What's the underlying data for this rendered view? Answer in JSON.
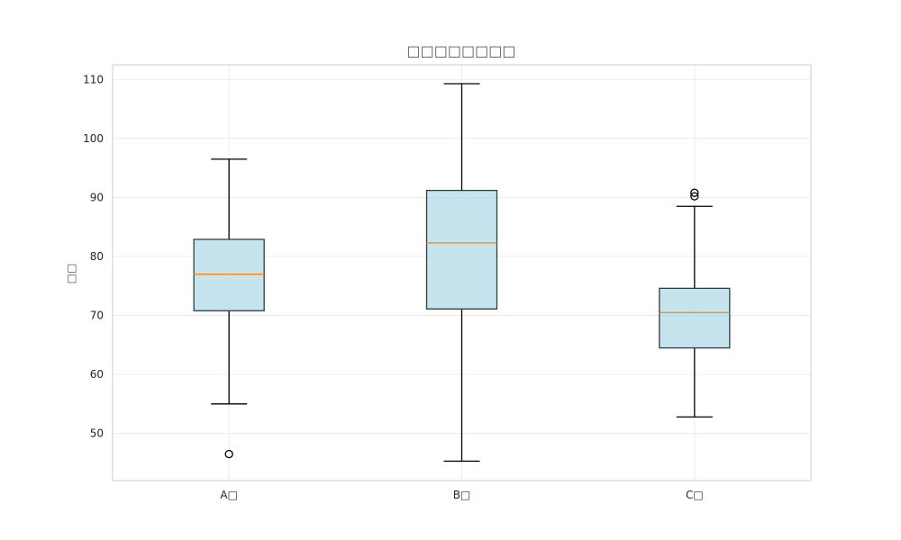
{
  "chart_data": {
    "type": "box",
    "title": "□□□□□□□□",
    "xlabel": "",
    "ylabel": "□□",
    "categories": [
      "A□",
      "B□",
      "C□"
    ],
    "ylim": [
      42,
      112.5
    ],
    "yticks": [
      50,
      60,
      70,
      80,
      90,
      100,
      110
    ],
    "grid": true,
    "boxes": [
      {
        "category": "A□",
        "whisker_low": 55,
        "q1": 70.8,
        "median": 77,
        "q3": 82.9,
        "whisker_high": 96.5,
        "outliers": [
          46.5
        ]
      },
      {
        "category": "B□",
        "whisker_low": 45.3,
        "q1": 71.1,
        "median": 82.3,
        "q3": 91.2,
        "whisker_high": 109.3,
        "outliers": []
      },
      {
        "category": "C□",
        "whisker_low": 52.8,
        "q1": 64.5,
        "median": 70.5,
        "q3": 74.6,
        "whisker_high": 88.5,
        "outliers": [
          90.2,
          90.8
        ]
      }
    ],
    "colors": {
      "box_fill": "#add8e6",
      "box_edge": "#2f3f44",
      "median": "#ff7f0e",
      "whisker": "#000000",
      "grid": "#ebebeb",
      "frame": "#cccccc"
    }
  }
}
